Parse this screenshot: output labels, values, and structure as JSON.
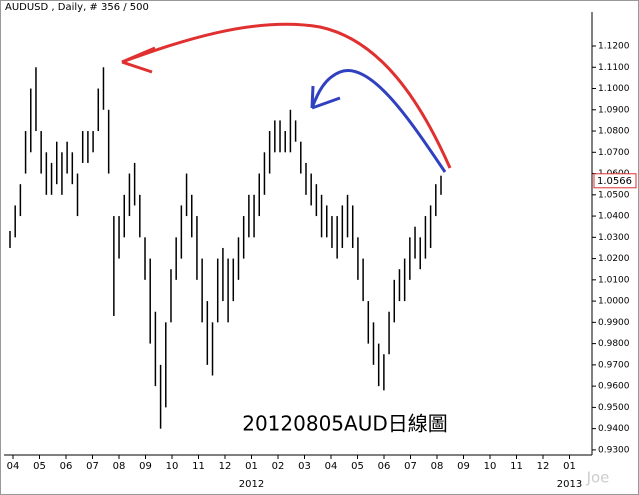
{
  "chart_data": {
    "type": "hilo",
    "title": "AUDUSD , Daily, # 356 / 500",
    "annotation": "20120805AUD日線圖",
    "watermark": "Joe",
    "last_price": {
      "value": 1.0566,
      "label": "1.0566"
    },
    "color": "#000000",
    "months": [
      "04",
      "05",
      "06",
      "07",
      "08",
      "09",
      "10",
      "11",
      "12",
      "01",
      "02",
      "03",
      "04",
      "05",
      "06",
      "07",
      "08",
      "09",
      "10",
      "11",
      "12",
      "01"
    ],
    "years": [
      null,
      null,
      null,
      null,
      null,
      null,
      null,
      null,
      null,
      "2012",
      null,
      null,
      null,
      null,
      null,
      null,
      null,
      null,
      null,
      null,
      null,
      "2013"
    ],
    "high": [
      1.033,
      1.045,
      1.055,
      1.08,
      1.1,
      1.11,
      1.08,
      1.07,
      1.065,
      1.075,
      1.07,
      1.075,
      1.07,
      1.06,
      1.08,
      1.08,
      1.08,
      1.1,
      1.11,
      1.09,
      1.04,
      1.04,
      1.05,
      1.06,
      1.065,
      1.05,
      1.03,
      1.02,
      0.995,
      0.97,
      0.99,
      1.015,
      1.03,
      1.045,
      1.06,
      1.05,
      1.04,
      1.02,
      1.0,
      0.99,
      1.02,
      1.025,
      1.02,
      1.02,
      1.03,
      1.04,
      1.05,
      1.05,
      1.06,
      1.07,
      1.08,
      1.085,
      1.085,
      1.08,
      1.09,
      1.085,
      1.075,
      1.065,
      1.06,
      1.055,
      1.05,
      1.045,
      1.04,
      1.04,
      1.045,
      1.05,
      1.045,
      1.03,
      1.02,
      1.0,
      0.99,
      0.98,
      0.975,
      0.995,
      1.01,
      1.015,
      1.02,
      1.03,
      1.035,
      1.03,
      1.04,
      1.045,
      1.055,
      1.059
    ],
    "low": [
      1.025,
      1.03,
      1.04,
      1.06,
      1.07,
      1.08,
      1.06,
      1.05,
      1.05,
      1.055,
      1.05,
      1.06,
      1.055,
      1.04,
      1.065,
      1.065,
      1.07,
      1.08,
      1.09,
      1.06,
      0.993,
      1.02,
      1.03,
      1.04,
      1.045,
      1.03,
      1.01,
      0.98,
      0.96,
      0.94,
      0.95,
      0.99,
      1.01,
      1.02,
      1.04,
      1.03,
      1.01,
      0.99,
      0.97,
      0.965,
      0.99,
      1.0,
      0.99,
      1.0,
      1.01,
      1.02,
      1.03,
      1.03,
      1.04,
      1.05,
      1.06,
      1.07,
      1.07,
      1.07,
      1.07,
      1.075,
      1.06,
      1.05,
      1.045,
      1.04,
      1.03,
      1.03,
      1.025,
      1.02,
      1.025,
      1.03,
      1.025,
      1.01,
      1.0,
      0.98,
      0.97,
      0.96,
      0.958,
      0.975,
      0.99,
      1.0,
      1.0,
      1.01,
      1.02,
      1.015,
      1.02,
      1.025,
      1.04,
      1.05
    ],
    "ylim": [
      0.9276,
      1.136
    ],
    "yticks": [
      {
        "value": 0.93,
        "label": "0.9300"
      },
      {
        "value": 0.94,
        "label": "0.9400"
      },
      {
        "value": 0.95,
        "label": "0.9500"
      },
      {
        "value": 0.96,
        "label": "0.9600"
      },
      {
        "value": 0.97,
        "label": "0.9700"
      },
      {
        "value": 0.98,
        "label": "0.9800"
      },
      {
        "value": 0.99,
        "label": "0.9900"
      },
      {
        "value": 1.0,
        "label": "1.0000"
      },
      {
        "value": 1.01,
        "label": "1.0100"
      },
      {
        "value": 1.02,
        "label": "1.0200"
      },
      {
        "value": 1.03,
        "label": "1.0300"
      },
      {
        "value": 1.04,
        "label": "1.0400"
      },
      {
        "value": 1.05,
        "label": "1.0500"
      },
      {
        "value": 1.06,
        "label": "1.0600"
      },
      {
        "value": 1.07,
        "label": "1.0700"
      },
      {
        "value": 1.08,
        "label": "1.0800"
      },
      {
        "value": 1.09,
        "label": "1.0900"
      },
      {
        "value": 1.1,
        "label": "1.1000"
      },
      {
        "value": 1.11,
        "label": "1.1100"
      },
      {
        "value": 1.12,
        "label": "1.1200"
      }
    ]
  }
}
